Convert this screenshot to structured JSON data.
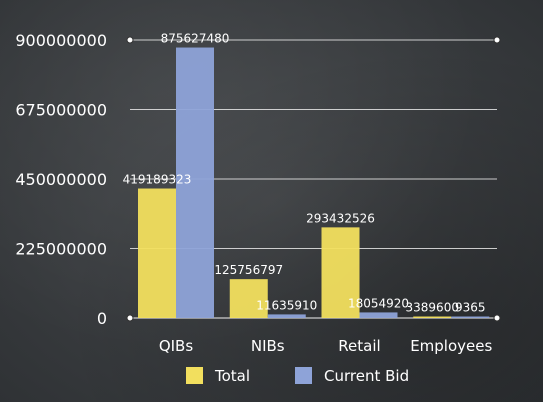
{
  "chart_data": {
    "type": "bar",
    "categories": [
      "QIBs",
      "NIBs",
      "Retail",
      "Employees"
    ],
    "series": [
      {
        "name": "Total",
        "values": [
          419189323,
          125756797,
          293432526,
          3389600
        ],
        "labels": [
          "419189323",
          "125756797",
          "293432526",
          "3389600"
        ],
        "color": "#f2df5e"
      },
      {
        "name": "Current Bid",
        "values": [
          875627480,
          11635910,
          18054920,
          9365
        ],
        "labels": [
          "875627480",
          "11635910",
          "18054920",
          "9365"
        ],
        "color": "#8ea3d8"
      }
    ],
    "y_ticks": [
      0,
      225000000,
      450000000,
      675000000,
      900000000
    ],
    "y_tick_labels": [
      "0",
      "225000000",
      "450000000",
      "675000000",
      "900000000"
    ],
    "ylim": [
      0,
      900000000
    ],
    "grid": true,
    "legend_position": "bottom",
    "title": "",
    "xlabel": "",
    "ylabel": ""
  }
}
